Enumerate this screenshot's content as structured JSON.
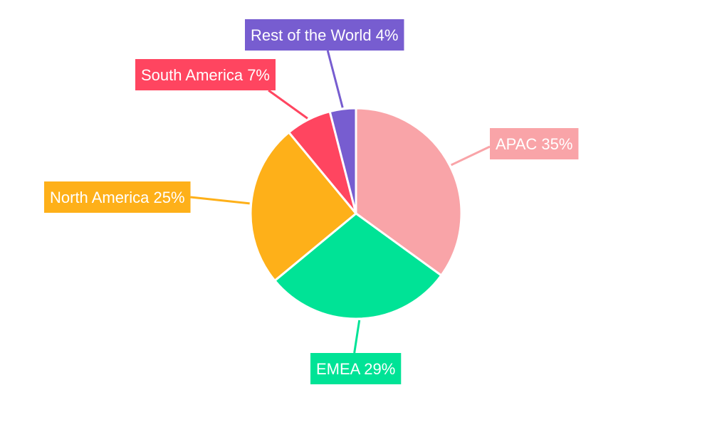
{
  "chart_data": {
    "type": "pie",
    "title": "",
    "slices": [
      {
        "label": "APAC",
        "value": 35,
        "display": "APAC 35%",
        "color": "#F9A4A8"
      },
      {
        "label": "EMEA",
        "value": 29,
        "display": "EMEA 29%",
        "color": "#00E396"
      },
      {
        "label": "North America",
        "value": 25,
        "display": "North America 25%",
        "color": "#FEB019"
      },
      {
        "label": "South America",
        "value": 7,
        "display": "South America 7%",
        "color": "#FF4560"
      },
      {
        "label": "Rest of the World",
        "value": 4,
        "display": "Rest of the World 4%",
        "color": "#775DD0"
      }
    ],
    "start_angle_deg": 0,
    "direction": "clockwise",
    "legend": "none",
    "label_style": "callout boxes with leader lines"
  }
}
